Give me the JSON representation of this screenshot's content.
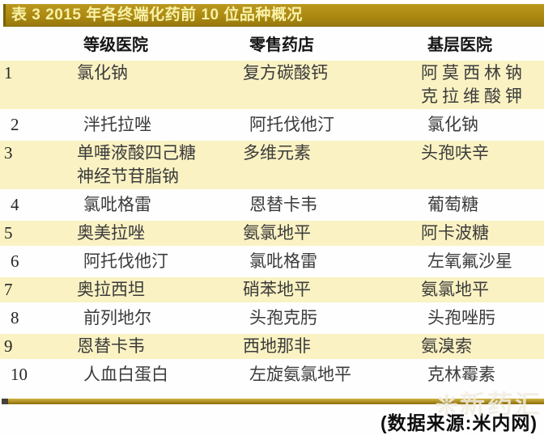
{
  "chart_data": {
    "type": "table",
    "title": "表 3 2015 年各终端化药前 10 位品种概况",
    "columns": [
      "等级医院",
      "零售药店",
      "基层医院"
    ],
    "rank_label": "",
    "rows": [
      {
        "rank": "1",
        "striped": true,
        "cells": [
          [
            "氯化钠"
          ],
          [
            "复方碳酸钙"
          ],
          [
            "阿莫西林钠",
            "克拉维酸钾"
          ]
        ]
      },
      {
        "rank": "2",
        "striped": false,
        "cells": [
          [
            "泮托拉唑"
          ],
          [
            "阿托伐他汀"
          ],
          [
            "氯化钠"
          ]
        ]
      },
      {
        "rank": "3",
        "striped": true,
        "cells": [
          [
            "单唾液酸四己糖",
            "神经节苷脂钠"
          ],
          [
            "多维元素"
          ],
          [
            "头孢呋辛"
          ]
        ]
      },
      {
        "rank": "4",
        "striped": false,
        "cells": [
          [
            "氯吡格雷"
          ],
          [
            "恩替卡韦"
          ],
          [
            "葡萄糖"
          ]
        ]
      },
      {
        "rank": "5",
        "striped": true,
        "cells": [
          [
            "奥美拉唑"
          ],
          [
            "氨氯地平"
          ],
          [
            "阿卡波糖"
          ]
        ]
      },
      {
        "rank": "6",
        "striped": false,
        "cells": [
          [
            "阿托伐他汀"
          ],
          [
            "氯吡格雷"
          ],
          [
            "左氧氟沙星"
          ]
        ]
      },
      {
        "rank": "7",
        "striped": true,
        "cells": [
          [
            "奥拉西坦"
          ],
          [
            "硝苯地平"
          ],
          [
            "氨氯地平"
          ]
        ]
      },
      {
        "rank": "8",
        "striped": false,
        "cells": [
          [
            "前列地尔"
          ],
          [
            "头孢克肟"
          ],
          [
            "头孢唑肟"
          ]
        ]
      },
      {
        "rank": "9",
        "striped": true,
        "cells": [
          [
            "恩替卡韦"
          ],
          [
            "西地那非"
          ],
          [
            "氨溴索"
          ]
        ]
      },
      {
        "rank": "10",
        "striped": false,
        "cells": [
          [
            "人血白蛋白"
          ],
          [
            "左旋氨氯地平"
          ],
          [
            "克林霉素"
          ]
        ]
      }
    ],
    "source_note": "(数据来源:米内网)"
  },
  "watermark": {
    "glyph": "❊",
    "text": "新药汇"
  },
  "colors": {
    "title_bar_gold": "#ac8a12",
    "title_text": "#f8f1a8",
    "row_stripe": "#faf2c3",
    "body_text": "#3b3b3b",
    "caption_text": "#0e0e0e"
  }
}
